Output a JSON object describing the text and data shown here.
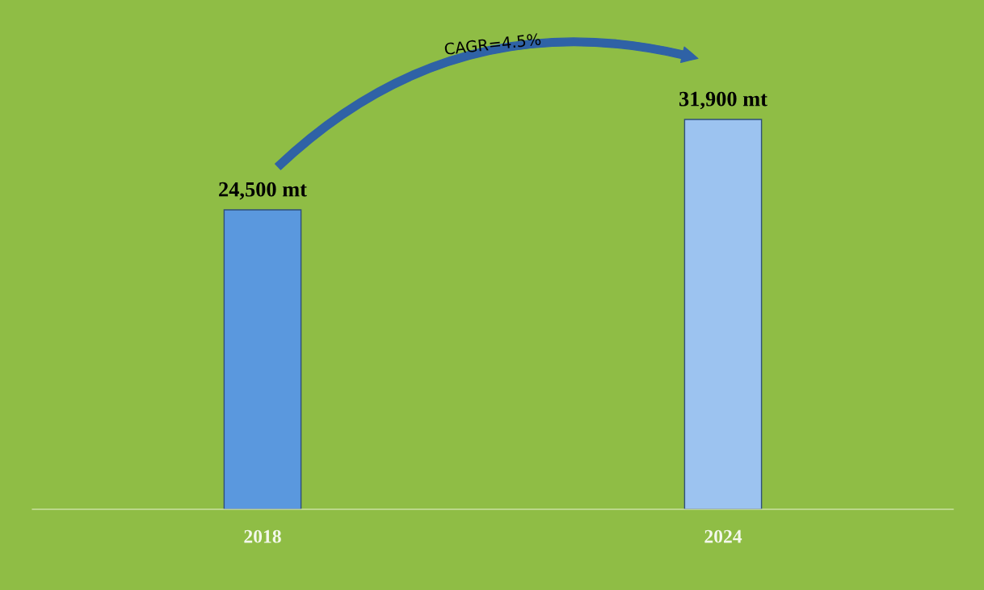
{
  "chart_data": {
    "type": "bar",
    "categories": [
      "2018",
      "2024"
    ],
    "values": [
      24500,
      31900
    ],
    "colors": [
      "#5a98de",
      "#9cc3f0"
    ],
    "value_labels": [
      "24,500 mt",
      "31,900 mt"
    ],
    "annotations": [
      "CAGR=4.5%"
    ],
    "legend": false,
    "grid": false
  }
}
